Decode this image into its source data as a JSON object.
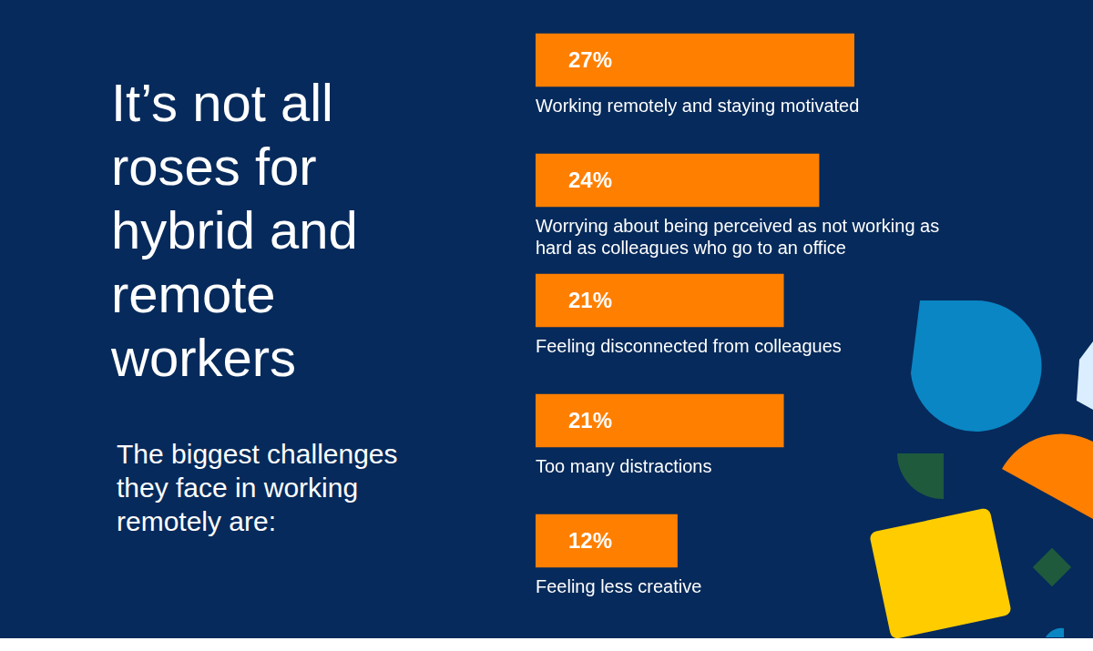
{
  "chart_data": {
    "type": "bar",
    "title": "It’s not all roses for hybrid and remote workers",
    "subtitle": "The biggest challenges they face in working remotely are:",
    "categories": [
      "Working remotely and staying motivated",
      "Worrying about being perceived as not working as hard as colleagues who go to an office",
      "Feeling disconnected from colleagues",
      "Too many distractions",
      "Feeling less creative"
    ],
    "values": [
      27,
      24,
      21,
      21,
      12
    ],
    "value_labels": [
      "27%",
      "24%",
      "21%",
      "21%",
      "12%"
    ],
    "color": "#ff7f00",
    "orientation": "horizontal",
    "data_labels": true,
    "tick_labels": false,
    "grid": false,
    "xlim": [
      0,
      27
    ]
  }
}
